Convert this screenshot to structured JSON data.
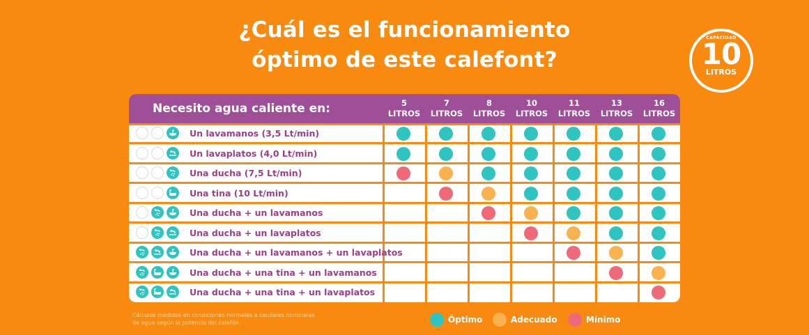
{
  "title": {
    "line1": "¿Cuál es el funcionamiento",
    "line2": "óptimo de este calefont?"
  },
  "badge": {
    "caption": "CAPACIDAD",
    "number": "10",
    "unit": "LITROS"
  },
  "colors": {
    "background": "#f98a10",
    "header": "#9f4f98",
    "optimo": "#2fc4c0",
    "adecuado": "#f9b24e",
    "minimo": "#ee6a79",
    "row_text": "#9b3f8c"
  },
  "chart_data": {
    "type": "table",
    "row_header": "Necesito agua caliente en:",
    "columns": [
      {
        "num": "5",
        "unit": "LITROS"
      },
      {
        "num": "7",
        "unit": "LITROS"
      },
      {
        "num": "8",
        "unit": "LITROS"
      },
      {
        "num": "10",
        "unit": "LITROS"
      },
      {
        "num": "11",
        "unit": "LITROS"
      },
      {
        "num": "13",
        "unit": "LITROS"
      },
      {
        "num": "16",
        "unit": "LITROS"
      }
    ],
    "rows": [
      {
        "label": "Un lavamanos (3,5 Lt/min)",
        "icons": [
          "",
          "",
          "sink-icon"
        ],
        "cells": [
          "optimo",
          "optimo",
          "optimo",
          "optimo",
          "optimo",
          "optimo",
          "optimo"
        ]
      },
      {
        "label": "Un lavaplatos (4,0 Lt/min)",
        "icons": [
          "",
          "",
          "faucet-icon"
        ],
        "cells": [
          "optimo",
          "optimo",
          "optimo",
          "optimo",
          "optimo",
          "optimo",
          "optimo"
        ]
      },
      {
        "label": "Una ducha (7,5 Lt/min)",
        "icons": [
          "",
          "",
          "shower-icon"
        ],
        "cells": [
          "minimo",
          "adecuado",
          "optimo",
          "optimo",
          "optimo",
          "optimo",
          "optimo"
        ]
      },
      {
        "label": "Una tina (10 Lt/min)",
        "icons": [
          "",
          "",
          "bathtub-icon"
        ],
        "cells": [
          "",
          "minimo",
          "adecuado",
          "optimo",
          "optimo",
          "optimo",
          "optimo"
        ]
      },
      {
        "label": "Una ducha + un lavamanos",
        "icons": [
          "",
          "shower-icon",
          "sink-icon"
        ],
        "cells": [
          "",
          "",
          "minimo",
          "adecuado",
          "optimo",
          "optimo",
          "optimo"
        ]
      },
      {
        "label": "Una ducha + un lavaplatos",
        "icons": [
          "",
          "shower-icon",
          "faucet-icon"
        ],
        "cells": [
          "",
          "",
          "",
          "minimo",
          "adecuado",
          "optimo",
          "optimo"
        ]
      },
      {
        "label": "Una ducha + un lavamanos + un lavaplatos",
        "icons": [
          "shower-icon",
          "faucet-icon",
          "sink-icon"
        ],
        "cells": [
          "",
          "",
          "",
          "",
          "minimo",
          "adecuado",
          "optimo"
        ]
      },
      {
        "label": "Una ducha + una tina + un lavamanos",
        "icons": [
          "shower-icon",
          "bathtub-icon",
          "sink-icon"
        ],
        "cells": [
          "",
          "",
          "",
          "",
          "",
          "minimo",
          "adecuado"
        ]
      },
      {
        "label": "Una ducha + una tina + un lavaplatos",
        "icons": [
          "shower-icon",
          "bathtub-icon",
          "faucet-icon"
        ],
        "cells": [
          "",
          "",
          "",
          "",
          "",
          "",
          "minimo"
        ]
      }
    ]
  },
  "legend": [
    {
      "key": "optimo",
      "label": "Óptimo"
    },
    {
      "key": "adecuado",
      "label": "Adecuado"
    },
    {
      "key": "minimo",
      "label": "Mínimo"
    }
  ],
  "footnote": "Cálculos medidos en condiciones normales a caudales nominales de agua según la potencia del calefón."
}
